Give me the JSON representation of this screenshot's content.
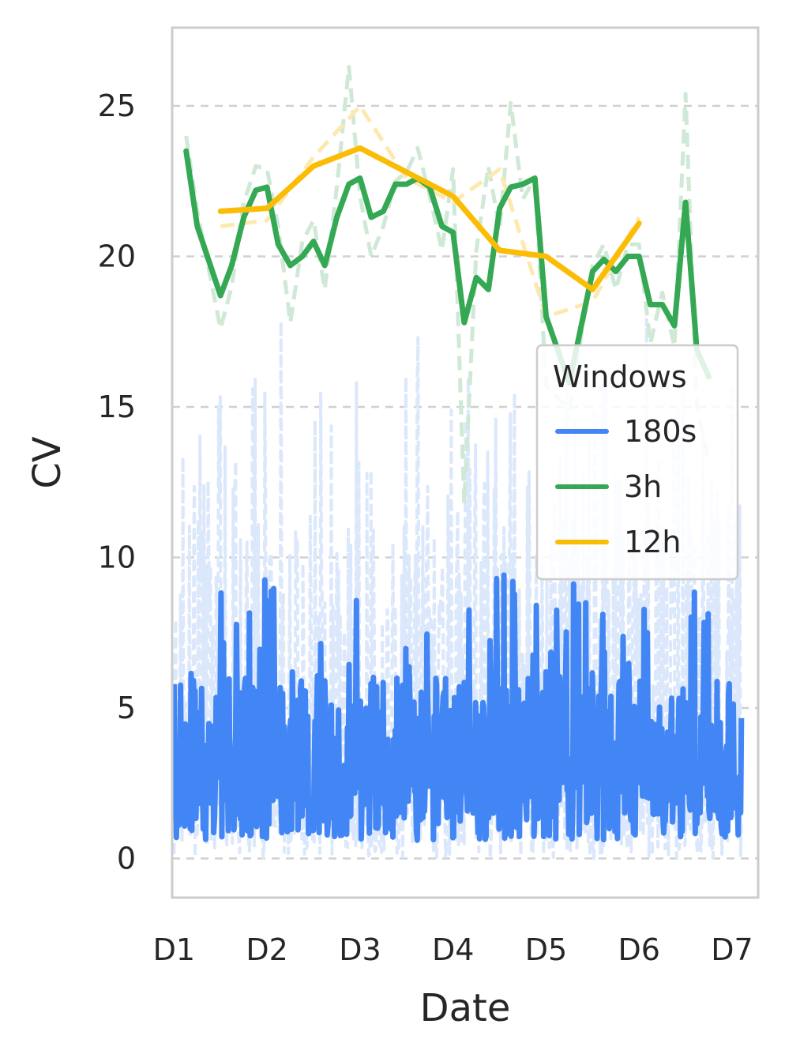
{
  "chart_data": {
    "type": "line",
    "xlabel": "Date",
    "ylabel": "CV",
    "ylim": [
      -1.3,
      27.6
    ],
    "xlim": [
      -0.02,
      6.28
    ],
    "x_tick_labels": [
      "D1",
      "D2",
      "D3",
      "D4",
      "D5",
      "D6",
      "D7"
    ],
    "x_tick_values": [
      0,
      1,
      2,
      3,
      4,
      5,
      6
    ],
    "y_ticks": [
      0,
      5,
      10,
      15,
      20,
      25
    ],
    "grid": "horizontal dashed",
    "legend": {
      "title": "Windows",
      "placement": "right",
      "entries": [
        "180s",
        "3h",
        "12h"
      ]
    },
    "colors": {
      "180s": "#4285f4",
      "180s_raw": "#dbe7fb",
      "3h": "#34a853",
      "3h_raw": "#cfe9d6",
      "12h": "#fbbc05",
      "12h_raw": "#fde9b0",
      "grid": "#d0d0d0",
      "frame": "#cccccc"
    },
    "series": [
      {
        "name": "180s",
        "generated": true,
        "x_start": 0.0,
        "x_end": 6.1,
        "smoothed_range": [
          0.6,
          10.3
        ],
        "raw_range": [
          0,
          18.8
        ]
      },
      {
        "name": "3h",
        "x": [
          0.13,
          0.25,
          0.5,
          0.62,
          0.75,
          0.88,
          1.0,
          1.12,
          1.25,
          1.38,
          1.5,
          1.62,
          1.75,
          1.88,
          2.0,
          2.12,
          2.25,
          2.38,
          2.5,
          2.62,
          2.75,
          2.88,
          3.0,
          3.12,
          3.25,
          3.38,
          3.5,
          3.62,
          3.75,
          3.88,
          4.0,
          4.25,
          4.5,
          4.62,
          4.75,
          4.88,
          5.0,
          5.12,
          5.25,
          5.38,
          5.5,
          5.62,
          5.75
        ],
        "values": [
          23.5,
          21.0,
          18.7,
          19.7,
          21.3,
          22.2,
          22.3,
          20.4,
          19.7,
          20.0,
          20.5,
          19.7,
          21.3,
          22.4,
          22.6,
          21.3,
          21.5,
          22.4,
          22.4,
          22.6,
          22.3,
          21.0,
          20.8,
          17.8,
          19.3,
          18.9,
          21.6,
          22.3,
          22.4,
          22.6,
          18.0,
          15.8,
          19.5,
          19.9,
          19.5,
          20.0,
          20.0,
          18.4,
          18.4,
          17.7,
          21.8,
          16.9,
          16.0
        ],
        "raw_values": [
          24.0,
          21.5,
          17.6,
          19.0,
          21.8,
          23.0,
          22.9,
          21.0,
          17.8,
          20.5,
          21.2,
          18.9,
          22.3,
          26.3,
          22.0,
          20.0,
          21.0,
          22.5,
          22.8,
          23.6,
          22.0,
          20.2,
          22.9,
          11.8,
          20.2,
          23.0,
          20.9,
          25.1,
          21.9,
          22.6,
          15.7,
          14.9,
          19.7,
          20.4,
          18.9,
          20.4,
          20.4,
          17.1,
          18.8,
          17.0,
          25.4,
          15.0,
          13.2
        ]
      },
      {
        "name": "12h",
        "x": [
          0.5,
          1.0,
          1.5,
          2.0,
          2.5,
          3.0,
          3.5,
          4.0,
          4.5,
          5.0
        ],
        "values": [
          21.5,
          21.6,
          23.0,
          23.6,
          22.8,
          22.0,
          20.2,
          20.0,
          18.9,
          21.1
        ],
        "raw_values": [
          21.0,
          21.2,
          23.3,
          25.0,
          22.6,
          21.8,
          22.9,
          18.0,
          18.5,
          21.3
        ]
      }
    ]
  }
}
